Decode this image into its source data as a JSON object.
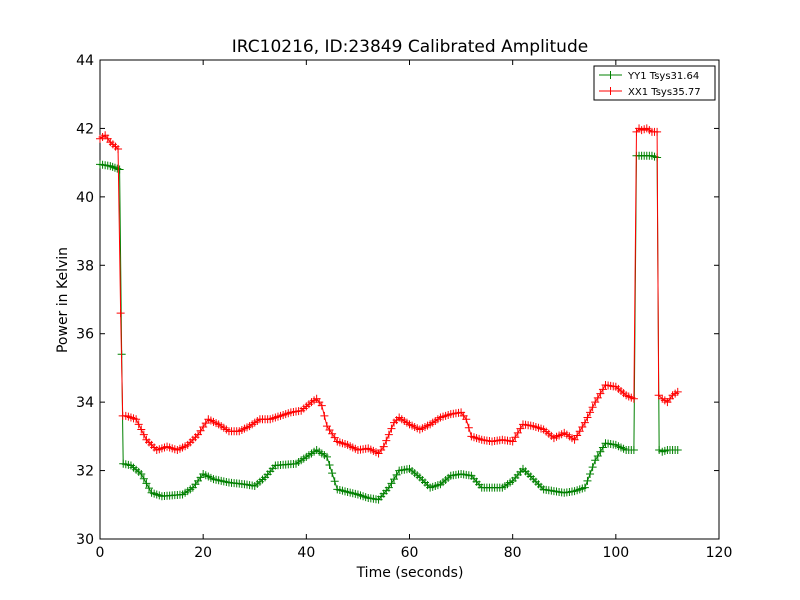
{
  "chart_data": {
    "type": "line",
    "title": "IRC10216, ID:23849 Calibrated Amplitude",
    "xlabel": "Time (seconds)",
    "ylabel": "Power in Kelvin",
    "xlim": [
      0,
      120
    ],
    "ylim": [
      30,
      44
    ],
    "xticks": [
      "0",
      "20",
      "40",
      "60",
      "80",
      "100",
      "120"
    ],
    "yticks": [
      "30",
      "32",
      "34",
      "36",
      "38",
      "40",
      "42",
      "44"
    ],
    "grid": false,
    "legend_position": "top-right",
    "series": [
      {
        "name": "YY1 Tsys31.64",
        "color": "#008000",
        "marker": "+",
        "x": [
          0,
          2,
          3.8,
          4.2,
          4.5,
          6,
          8,
          10,
          12,
          16,
          18,
          20,
          22,
          25,
          28,
          30,
          32,
          34,
          38,
          40,
          42,
          44,
          46,
          50,
          52,
          54,
          56,
          58,
          60,
          62,
          64,
          66,
          68,
          70,
          72,
          74,
          78,
          80,
          82,
          84,
          86,
          90,
          92,
          94,
          96,
          98,
          100,
          102,
          103.5,
          104,
          104.5,
          105,
          106,
          107,
          108,
          108.4,
          109,
          110,
          111,
          112
        ],
        "y": [
          40.95,
          40.9,
          40.8,
          35.4,
          32.2,
          32.15,
          31.9,
          31.35,
          31.25,
          31.3,
          31.5,
          31.9,
          31.75,
          31.65,
          31.6,
          31.55,
          31.8,
          32.15,
          32.2,
          32.4,
          32.6,
          32.4,
          31.45,
          31.3,
          31.2,
          31.15,
          31.5,
          32.0,
          32.05,
          31.8,
          31.5,
          31.6,
          31.85,
          31.9,
          31.85,
          31.5,
          31.5,
          31.7,
          32.05,
          31.75,
          31.45,
          31.35,
          31.4,
          31.5,
          32.3,
          32.8,
          32.75,
          32.6,
          32.6,
          41.2,
          41.2,
          41.2,
          41.2,
          41.2,
          41.15,
          32.6,
          32.55,
          32.6,
          32.6,
          32.6
        ]
      },
      {
        "name": "XX1 Tsys35.77",
        "color": "#ff0000",
        "marker": "+",
        "x": [
          0,
          1,
          2,
          3.5,
          4.0,
          4.4,
          5,
          7,
          9,
          11,
          13,
          15,
          17,
          19,
          21,
          23,
          25,
          27,
          29,
          31,
          33,
          35,
          37,
          39,
          41,
          42,
          43,
          44,
          46,
          48,
          50,
          52,
          54,
          55,
          57,
          58,
          60,
          62,
          64,
          66,
          68,
          70,
          71,
          72,
          74,
          76,
          78,
          80,
          82,
          84,
          86,
          88,
          90,
          92,
          94,
          96,
          98,
          100,
          102,
          103.5,
          104,
          104.5,
          105,
          106,
          107,
          108,
          108.3,
          109,
          110,
          111,
          112
        ],
        "y": [
          41.7,
          41.8,
          41.6,
          41.4,
          36.6,
          33.6,
          33.6,
          33.5,
          32.9,
          32.6,
          32.7,
          32.6,
          32.75,
          33.05,
          33.5,
          33.35,
          33.15,
          33.15,
          33.3,
          33.5,
          33.5,
          33.6,
          33.7,
          33.75,
          34.0,
          34.1,
          33.9,
          33.3,
          32.85,
          32.75,
          32.6,
          32.65,
          32.5,
          32.7,
          33.4,
          33.55,
          33.35,
          33.2,
          33.35,
          33.55,
          33.65,
          33.7,
          33.5,
          33.0,
          32.9,
          32.85,
          32.9,
          32.85,
          33.35,
          33.3,
          33.2,
          32.95,
          33.1,
          32.9,
          33.4,
          34.0,
          34.5,
          34.45,
          34.2,
          34.1,
          41.9,
          42.0,
          41.95,
          42.0,
          41.9,
          41.9,
          34.2,
          34.1,
          34.0,
          34.2,
          34.3
        ]
      }
    ]
  }
}
